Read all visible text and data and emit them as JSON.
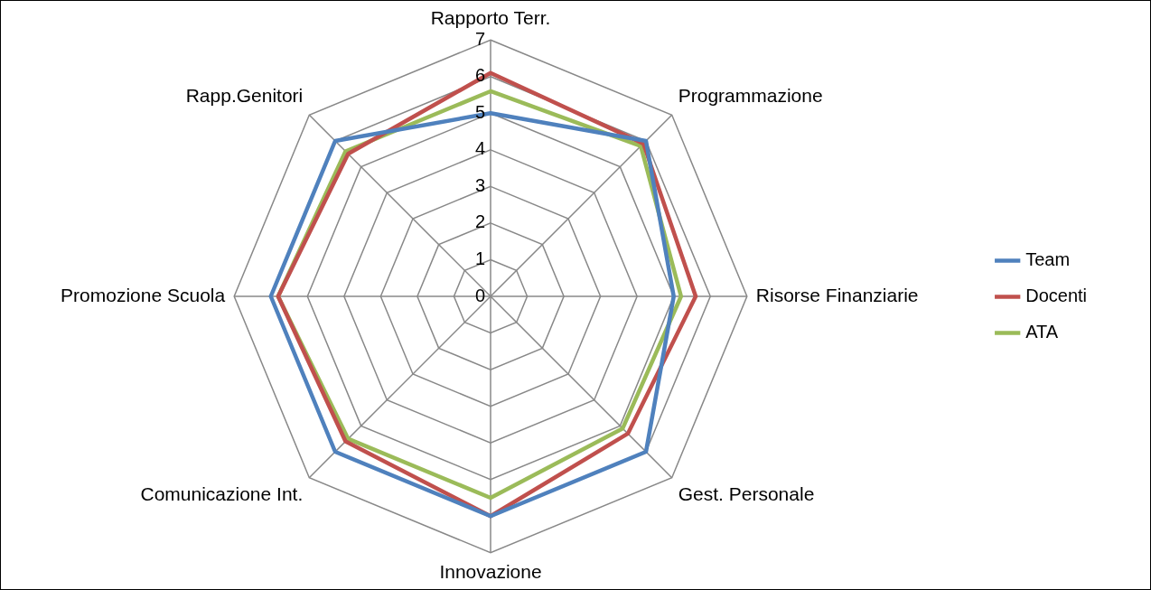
{
  "chart_data": {
    "type": "radar",
    "categories": [
      "Rapporto Terr.",
      "Programmazione",
      "Risorse Finanziarie",
      "Gest. Personale",
      "Innovazione",
      "Comunicazione Int.",
      "Promozione Scuola",
      "Rapp.Genitori"
    ],
    "series": [
      {
        "name": "Team",
        "color": "#4f81bd",
        "values": [
          5.0,
          6.0,
          5.0,
          6.0,
          6.0,
          6.0,
          6.0,
          6.0
        ]
      },
      {
        "name": "Docenti",
        "color": "#c0504d",
        "values": [
          6.1,
          5.9,
          5.6,
          5.3,
          6.0,
          5.6,
          5.8,
          5.5
        ]
      },
      {
        "name": "ATA",
        "color": "#9bbb59",
        "values": [
          5.6,
          5.8,
          5.2,
          5.1,
          5.5,
          5.5,
          5.8,
          5.6
        ]
      }
    ],
    "ylim": [
      0,
      7
    ],
    "yticks": [
      0,
      1,
      2,
      3,
      4,
      5,
      6,
      7
    ],
    "grid": true,
    "legend": "right",
    "marker": "none",
    "line_style": "solid"
  }
}
